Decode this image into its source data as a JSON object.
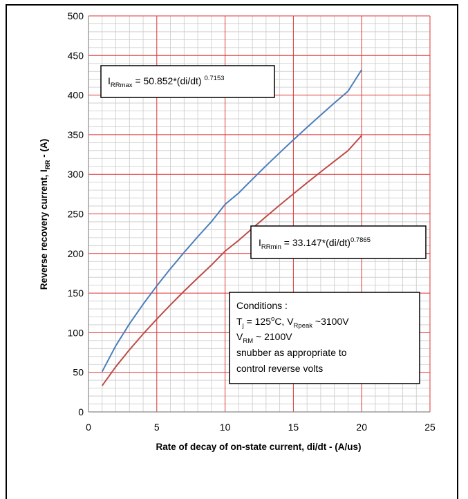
{
  "chart_data": {
    "type": "line",
    "xlabel": "Rate of decay of on-state current, di/dt - (A/us)",
    "ylabel_main": "Reverse recovery current, I",
    "ylabel_sub": "RR",
    "ylabel_tail": " - (A)",
    "xlim": [
      0,
      25
    ],
    "ylim": [
      0,
      500
    ],
    "x_ticks": [
      "0",
      "5",
      "10",
      "15",
      "20",
      "25"
    ],
    "y_ticks": [
      "0",
      "50",
      "100",
      "150",
      "200",
      "250",
      "300",
      "350",
      "400",
      "450",
      "500"
    ],
    "grid": true,
    "series": [
      {
        "name": "IRRmax",
        "color": "#4a7ebb",
        "x": [
          1,
          2,
          3,
          4,
          5,
          6,
          7,
          8,
          9,
          10,
          11,
          12,
          13,
          14,
          15,
          16,
          17,
          18,
          19,
          20
        ],
        "y": [
          50.9,
          83.6,
          111.2,
          136.0,
          159.1,
          180.8,
          201.4,
          221.2,
          240.2,
          262.0,
          276.5,
          293.8,
          310.8,
          327.3,
          343.5,
          359.3,
          374.8,
          390.0,
          404.9,
          432.0
        ]
      },
      {
        "name": "IRRmin",
        "color": "#be4b48",
        "x": [
          1,
          2,
          3,
          4,
          5,
          6,
          7,
          8,
          9,
          10,
          11,
          12,
          13,
          14,
          15,
          16,
          17,
          18,
          19,
          20
        ],
        "y": [
          33.1,
          57.1,
          78.5,
          98.4,
          117.2,
          135.2,
          152.5,
          169.2,
          185.4,
          203.0,
          216.7,
          231.8,
          246.6,
          261.1,
          275.3,
          289.3,
          303.0,
          316.5,
          329.9,
          349.0
        ]
      }
    ],
    "annotations": {
      "max_eq": {
        "main": "I",
        "sub": "RRmax",
        "body": " = 50.852*(di/dt) ",
        "sup": "0.7153"
      },
      "min_eq": {
        "main": "I",
        "sub": "RRmin",
        "body": " = 33.147*(di/dt)",
        "sup": "0.7865"
      },
      "conditions": {
        "title": "Conditions :",
        "line2": {
          "a": "T",
          "a_sub": "j",
          "b": " = 125",
          "b_sup": "o",
          "c": "C, V",
          "c_sub": "Rpeak",
          "d": " ~3100V"
        },
        "line3": {
          "a": "V",
          "a_sub": "RM",
          "b": " ~ 2100V"
        },
        "line4": "snubber as appropriate to",
        "line5": "control reverse volts"
      }
    }
  }
}
